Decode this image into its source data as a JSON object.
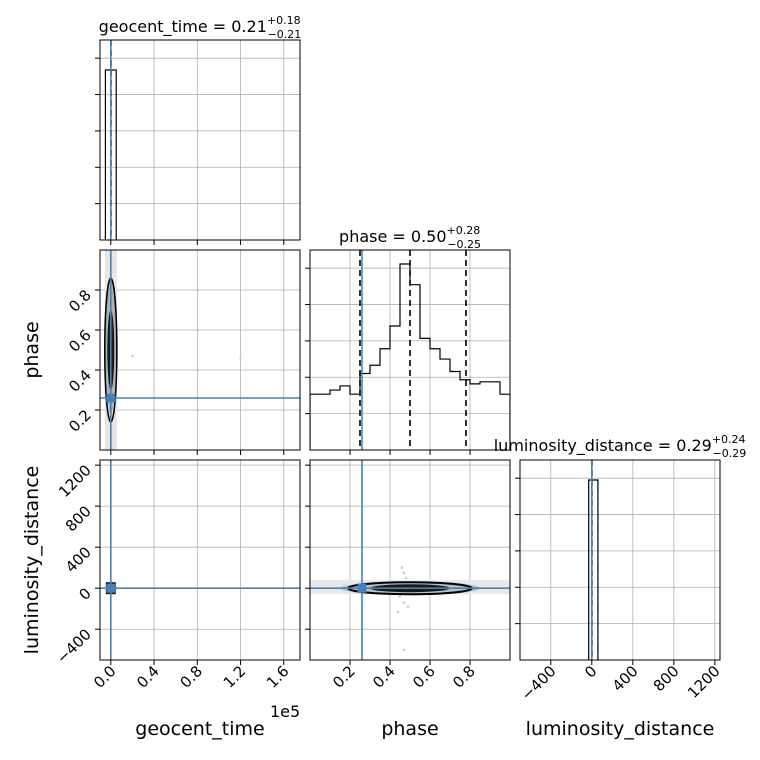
{
  "chart_data": {
    "type": "corner",
    "parameters": [
      "geocent_time",
      "phase",
      "luminosity_distance"
    ],
    "titles": [
      {
        "param": "geocent_time",
        "prefix": "geocent_time = ",
        "median": "0.21",
        "plus": "+0.18",
        "minus": "−0.21"
      },
      {
        "param": "phase",
        "prefix": "phase = ",
        "median": "0.50",
        "plus": "+0.28",
        "minus": "−0.25"
      },
      {
        "param": "luminosity_distance",
        "prefix": "luminosity_distance = ",
        "median": "0.29",
        "plus": "+0.24",
        "minus": "−0.29"
      }
    ],
    "axis_labels": {
      "x": [
        "geocent_time",
        "phase",
        "luminosity_distance"
      ],
      "y": [
        "phase",
        "luminosity_distance"
      ]
    },
    "offset_text": "1e5",
    "ranges": {
      "geocent_time": [
        -0.1,
        1.75
      ],
      "phase": [
        0.0,
        1.0
      ],
      "luminosity_distance": [
        -700,
        1250
      ]
    },
    "ticks": {
      "geocent_time": [
        "0.0",
        "0.4",
        "0.8",
        "1.2",
        "1.6"
      ],
      "geocent_time_values": [
        0.0,
        0.4,
        0.8,
        1.2,
        1.6
      ],
      "phase": [
        "0.2",
        "0.4",
        "0.6",
        "0.8"
      ],
      "phase_values": [
        0.2,
        0.4,
        0.6,
        0.8
      ],
      "luminosity_distance": [
        "−400",
        "0",
        "400",
        "800",
        "1200"
      ],
      "luminosity_distance_values": [
        -400,
        0,
        400,
        800,
        1200
      ]
    },
    "truths": {
      "geocent_time": 0.0,
      "phase": 0.26,
      "luminosity_distance": 0
    },
    "quantiles": {
      "geocent_time": [
        0.0,
        0.0,
        0.0
      ],
      "phase": [
        0.25,
        0.5,
        0.78
      ],
      "luminosity_distance": [
        0,
        0,
        0
      ]
    },
    "hist_geocent_time": {
      "edges": [
        -0.05,
        0.05
      ],
      "values": [
        1.0
      ]
    },
    "hist_phase": {
      "edges": [
        0.0,
        0.05,
        0.1,
        0.15,
        0.2,
        0.25,
        0.3,
        0.35,
        0.4,
        0.45,
        0.5,
        0.55,
        0.6,
        0.65,
        0.7,
        0.75,
        0.8,
        0.85,
        0.9,
        0.95,
        1.0
      ],
      "values": [
        0.27,
        0.27,
        0.29,
        0.31,
        0.27,
        0.37,
        0.41,
        0.49,
        0.6,
        0.9,
        0.8,
        0.54,
        0.49,
        0.44,
        0.38,
        0.34,
        0.32,
        0.33,
        0.33,
        0.27
      ]
    },
    "hist_luminosity_distance": {
      "edges": [
        -30,
        60
      ],
      "values": [
        1.0
      ]
    },
    "scatter_geocent_phase": [
      {
        "x": 0.2,
        "y": 0.47
      },
      {
        "x": 1.2,
        "y": 0.46
      }
    ],
    "scatter_phase_lumdist": [
      {
        "x": 0.46,
        "y": 200
      },
      {
        "x": 0.47,
        "y": 150
      },
      {
        "x": 0.48,
        "y": 100
      },
      {
        "x": 0.45,
        "y": -80
      },
      {
        "x": 0.47,
        "y": -140
      },
      {
        "x": 0.44,
        "y": -230
      },
      {
        "x": 0.49,
        "y": -180
      },
      {
        "x": 0.47,
        "y": -600
      }
    ]
  },
  "colors": {
    "line": "#000000",
    "truth": "#4682b4",
    "grid": "#b0b0b0",
    "faint": "#cccccc"
  }
}
